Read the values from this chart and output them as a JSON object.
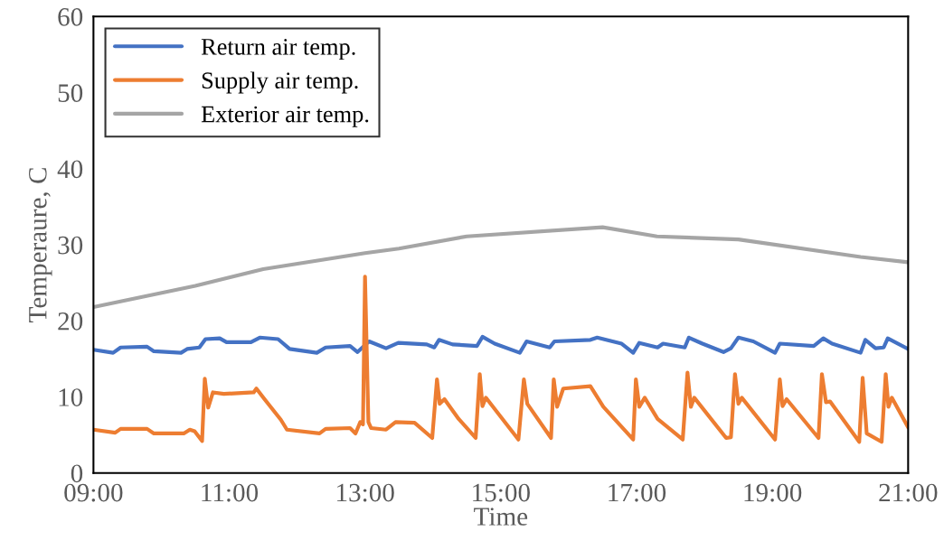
{
  "chart_data": {
    "type": "line",
    "xlabel": "Time",
    "ylabel": "Temperaure, C",
    "xlim": [
      9,
      21
    ],
    "xticks": [
      {
        "value": 9,
        "label": "09:00"
      },
      {
        "value": 11,
        "label": "11:00"
      },
      {
        "value": 13,
        "label": "13:00"
      },
      {
        "value": 15,
        "label": "15:00"
      },
      {
        "value": 17,
        "label": "17:00"
      },
      {
        "value": 19,
        "label": "19:00"
      },
      {
        "value": 21,
        "label": "21:00"
      }
    ],
    "ylim": [
      0,
      60
    ],
    "yticks": [
      0,
      10,
      20,
      30,
      40,
      50,
      60
    ],
    "grid": false,
    "legend": "top left",
    "marker": "none",
    "line_style": "solid",
    "series": [
      {
        "name": "Return air temp.",
        "color": "#4472c4",
        "x": [
          9.0,
          9.29,
          9.4,
          9.79,
          9.89,
          10.29,
          10.38,
          10.56,
          10.65,
          10.86,
          10.96,
          11.32,
          11.45,
          11.72,
          11.89,
          12.29,
          12.42,
          12.78,
          12.89,
          13.06,
          13.31,
          13.49,
          13.91,
          14.02,
          14.09,
          14.29,
          14.65,
          14.73,
          14.91,
          15.28,
          15.38,
          15.72,
          15.79,
          16.32,
          16.42,
          16.78,
          16.95,
          17.04,
          17.31,
          17.39,
          17.71,
          17.77,
          17.97,
          18.28,
          18.39,
          18.5,
          18.72,
          19.04,
          19.11,
          19.61,
          19.75,
          19.88,
          20.3,
          20.37,
          20.52,
          20.64,
          20.7,
          21.0
        ],
        "values": [
          16.2,
          15.8,
          16.5,
          16.6,
          16.0,
          15.8,
          16.3,
          16.5,
          17.6,
          17.7,
          17.2,
          17.2,
          17.8,
          17.6,
          16.3,
          15.8,
          16.5,
          16.7,
          15.9,
          17.3,
          16.4,
          17.1,
          16.9,
          16.5,
          17.5,
          16.9,
          16.7,
          17.9,
          17.0,
          15.8,
          17.3,
          16.5,
          17.3,
          17.5,
          17.8,
          17.0,
          15.8,
          17.1,
          16.5,
          17.0,
          16.5,
          17.8,
          17.0,
          15.9,
          16.4,
          17.8,
          17.3,
          15.8,
          17.0,
          16.7,
          17.7,
          17.0,
          15.8,
          17.5,
          16.4,
          16.5,
          17.7,
          16.3
        ]
      },
      {
        "name": "Supply air temp.",
        "color": "#ed7d31",
        "x": [
          9.0,
          9.32,
          9.4,
          9.79,
          9.89,
          10.33,
          10.42,
          10.49,
          10.6,
          10.64,
          10.69,
          10.76,
          10.92,
          11.36,
          11.4,
          11.52,
          11.76,
          11.85,
          12.33,
          12.42,
          12.78,
          12.86,
          12.93,
          12.97,
          13.0,
          13.05,
          13.09,
          13.31,
          13.45,
          13.73,
          13.99,
          14.06,
          14.1,
          14.17,
          14.38,
          14.63,
          14.69,
          14.73,
          14.78,
          15.26,
          15.34,
          15.39,
          15.74,
          15.78,
          15.83,
          15.92,
          16.32,
          16.51,
          16.95,
          16.99,
          17.04,
          17.12,
          17.31,
          17.68,
          17.75,
          17.8,
          17.85,
          18.32,
          18.39,
          18.45,
          18.5,
          18.55,
          19.04,
          19.11,
          19.15,
          19.21,
          19.68,
          19.73,
          19.79,
          19.85,
          20.28,
          20.33,
          20.39,
          20.61,
          20.67,
          20.71,
          20.76,
          21.0
        ],
        "values": [
          5.7,
          5.3,
          5.8,
          5.8,
          5.2,
          5.2,
          5.7,
          5.5,
          4.2,
          12.4,
          8.6,
          10.6,
          10.4,
          10.6,
          11.1,
          9.7,
          7.0,
          5.7,
          5.2,
          5.8,
          5.9,
          5.2,
          6.7,
          6.4,
          25.8,
          6.7,
          5.9,
          5.7,
          6.7,
          6.6,
          4.6,
          12.3,
          9.1,
          9.7,
          7.1,
          4.6,
          13.0,
          8.8,
          9.9,
          4.4,
          12.3,
          9.1,
          4.6,
          12.3,
          8.7,
          11.1,
          11.4,
          8.7,
          4.4,
          12.3,
          8.7,
          9.9,
          7.1,
          4.4,
          13.2,
          8.7,
          9.9,
          4.6,
          4.7,
          13.0,
          9.1,
          9.9,
          4.4,
          12.3,
          8.8,
          9.7,
          4.6,
          13.0,
          9.3,
          9.4,
          4.1,
          12.5,
          5.2,
          4.1,
          13.0,
          8.7,
          9.9,
          6.0
        ]
      },
      {
        "name": "Exterior air temp.",
        "color": "#a5a5a5",
        "x": [
          9.0,
          10.5,
          11.5,
          13.0,
          13.5,
          14.5,
          16.5,
          17.3,
          18.5,
          20.3,
          21.0
        ],
        "values": [
          21.8,
          24.6,
          26.8,
          28.9,
          29.5,
          31.1,
          32.3,
          31.1,
          30.7,
          28.4,
          27.7
        ]
      }
    ]
  }
}
